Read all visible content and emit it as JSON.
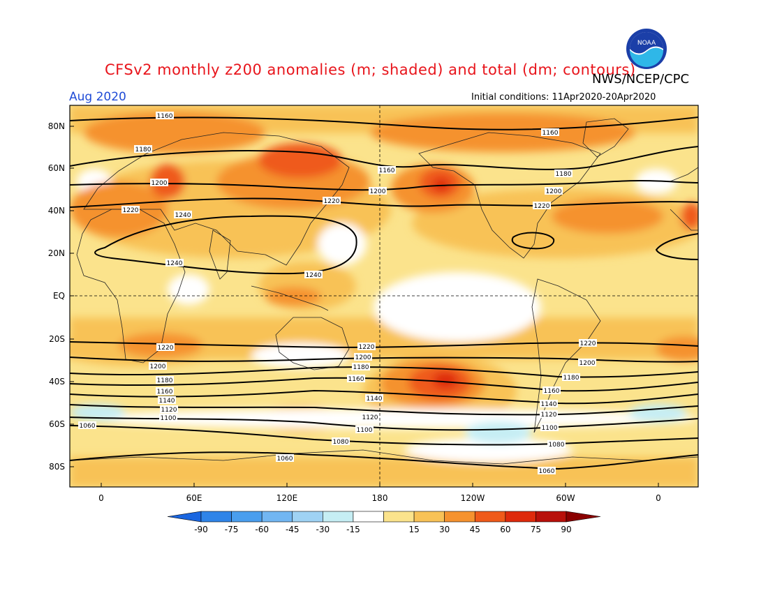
{
  "header": {
    "title": "CFSv2 monthly z200 anomalies (m; shaded) and total (dm; contours)",
    "agency": "NWS/NCEP/CPC",
    "month": "Aug 2020",
    "initial_conditions": "Initial conditions: 11Apr2020-20Apr2020",
    "logo_text": "NOAA"
  },
  "axes": {
    "lat_labels": [
      "80N",
      "60N",
      "40N",
      "20N",
      "EQ",
      "20S",
      "40S",
      "60S",
      "80S"
    ],
    "lon_labels": [
      "0",
      "60E",
      "120E",
      "180",
      "120W",
      "60W",
      "0"
    ]
  },
  "colorbar": {
    "ticks": [
      "-90",
      "-75",
      "-60",
      "-45",
      "-30",
      "-15",
      "15",
      "30",
      "45",
      "60",
      "75",
      "90"
    ],
    "colors": [
      "#1a66e0",
      "#2f84e8",
      "#4a9eee",
      "#72b6f2",
      "#9fd2f4",
      "#c6eef4",
      "#ffffff",
      "#fbe38c",
      "#f8c257",
      "#f5922f",
      "#ef5a1a",
      "#de2a0c",
      "#b8100a",
      "#8a0000"
    ]
  },
  "contour_labels": [
    {
      "text": "1160"
    },
    {
      "text": "1160"
    },
    {
      "text": "1160"
    },
    {
      "text": "1180"
    },
    {
      "text": "1180"
    },
    {
      "text": "1200"
    },
    {
      "text": "1200"
    },
    {
      "text": "1200"
    },
    {
      "text": "1220"
    },
    {
      "text": "1220"
    },
    {
      "text": "1220"
    },
    {
      "text": "1240"
    },
    {
      "text": "1240"
    },
    {
      "text": "1240"
    },
    {
      "text": "1220"
    },
    {
      "text": "1220"
    },
    {
      "text": "1220"
    },
    {
      "text": "1200"
    },
    {
      "text": "1200"
    },
    {
      "text": "1200"
    },
    {
      "text": "1180"
    },
    {
      "text": "1180"
    },
    {
      "text": "1180"
    },
    {
      "text": "1160"
    },
    {
      "text": "1160"
    },
    {
      "text": "1160"
    },
    {
      "text": "1140"
    },
    {
      "text": "1140"
    },
    {
      "text": "1140"
    },
    {
      "text": "1120"
    },
    {
      "text": "1120"
    },
    {
      "text": "1120"
    },
    {
      "text": "1100"
    },
    {
      "text": "1100"
    },
    {
      "text": "1100"
    },
    {
      "text": "1080"
    },
    {
      "text": "1080"
    },
    {
      "text": "1060"
    },
    {
      "text": "1060"
    },
    {
      "text": "1060"
    }
  ]
}
